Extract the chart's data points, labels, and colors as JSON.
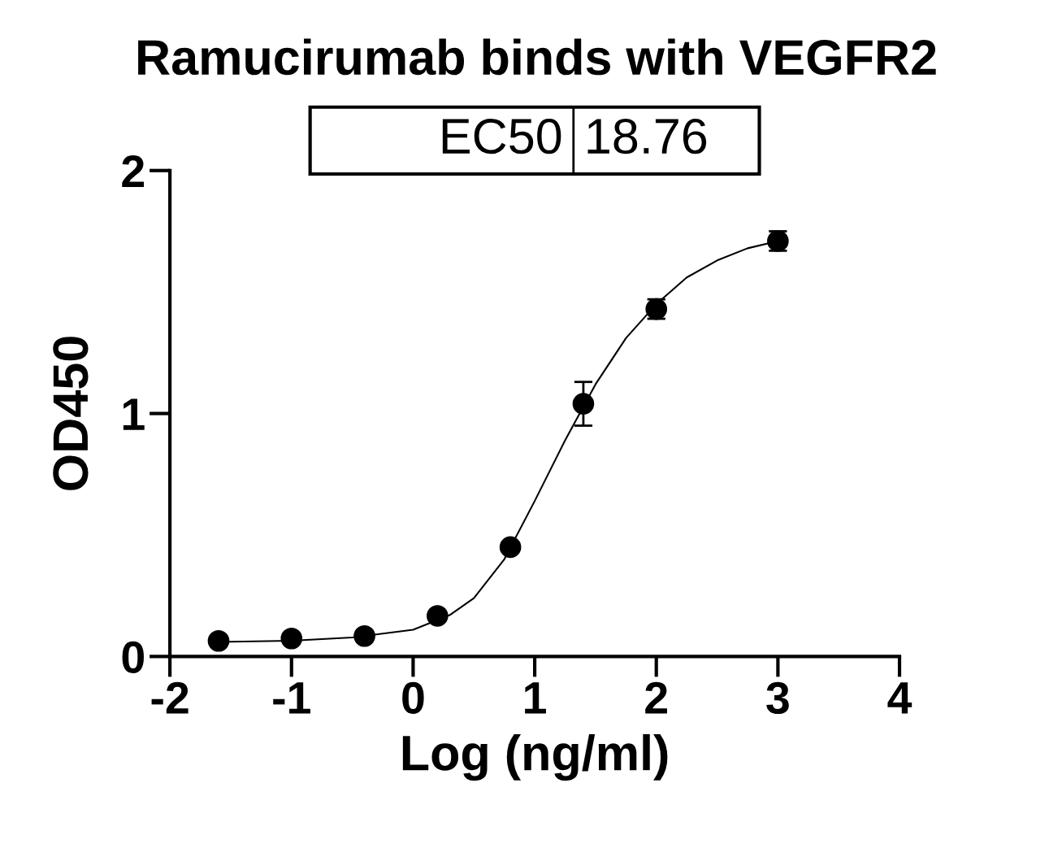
{
  "chart_data": {
    "type": "scatter",
    "title": "Ramucirumab binds with VEGFR2",
    "xlabel": "Log (ng/ml)",
    "ylabel": "OD450",
    "annotations": [
      "EC50",
      "18.76"
    ],
    "xlim": [
      -2,
      4
    ],
    "xticks": [
      -2,
      -1,
      0,
      1,
      2,
      3,
      4
    ],
    "ylim": [
      0,
      2
    ],
    "yticks": [
      0,
      1,
      2
    ],
    "grid": false,
    "legend": false,
    "series": [
      {
        "color": "#000000",
        "marker": "circle",
        "x": [
          -1.6,
          -1.0,
          -0.4,
          0.2,
          0.8,
          1.4,
          2.0,
          3.0
        ],
        "values": [
          0.064,
          0.074,
          0.084,
          0.167,
          0.45,
          1.04,
          1.43,
          1.71
        ],
        "errors": [
          null,
          null,
          null,
          null,
          null,
          0.09,
          0.04,
          0.04
        ]
      },
      {
        "type": "line",
        "color": "#000000",
        "marker": "none",
        "line_style": "solid",
        "x": [
          -1.6,
          -1.0,
          -0.5,
          0,
          0.3,
          0.5,
          0.75,
          1.0,
          1.25,
          1.5,
          1.75,
          2.0,
          2.25,
          2.5,
          2.75,
          3.0
        ],
        "values": [
          0.06,
          0.065,
          0.078,
          0.11,
          0.17,
          0.24,
          0.4,
          0.64,
          0.89,
          1.12,
          1.31,
          1.45,
          1.56,
          1.63,
          1.68,
          1.71
        ]
      }
    ]
  }
}
